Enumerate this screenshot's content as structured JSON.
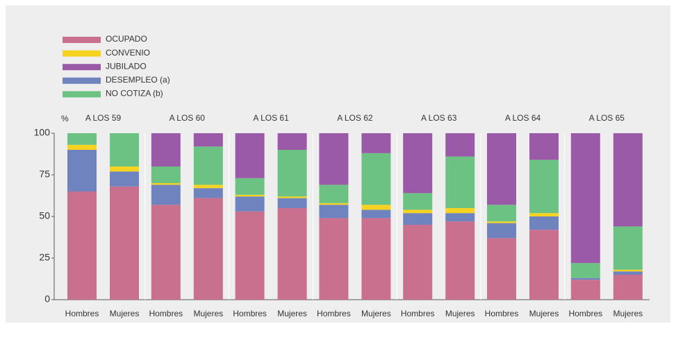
{
  "chart_data": {
    "type": "stacked_bar",
    "y_label": "%",
    "groups": [
      "A LOS 59",
      "A LOS 60",
      "A LOS 61",
      "A LOS 62",
      "A LOS 63",
      "A LOS 64",
      "A LOS 65"
    ],
    "categories": [
      "Hombres",
      "Mujeres",
      "Hombres",
      "Mujeres",
      "Hombres",
      "Mujeres",
      "Hombres",
      "Mujeres",
      "Hombres",
      "Mujeres",
      "Hombres",
      "Mujeres",
      "Hombres",
      "Mujeres"
    ],
    "series": [
      {
        "name": "OCUPADO",
        "color": "#c9708e",
        "values": [
          65,
          68,
          57,
          61,
          53,
          55,
          49,
          49,
          45,
          47,
          37,
          42,
          12,
          15
        ]
      },
      {
        "name": "CONVENIO",
        "color": "#f5d320",
        "values": [
          3,
          3,
          1,
          2,
          1,
          1,
          1,
          3,
          2,
          3,
          1,
          2,
          0,
          1
        ]
      },
      {
        "name": "JUBILADO",
        "color": "#9b5aa8",
        "values": [
          0,
          0,
          20,
          8,
          27,
          10,
          31,
          12,
          36,
          14,
          43,
          16,
          78,
          56
        ]
      },
      {
        "name": "DESEMPLEO (a)",
        "color": "#6f84be",
        "values": [
          25,
          9,
          12,
          6,
          9,
          6,
          8,
          5,
          7,
          5,
          9,
          8,
          1,
          2
        ]
      },
      {
        "name": "NO COTIZA (b)",
        "color": "#6cc283",
        "values": [
          7,
          20,
          10,
          23,
          10,
          28,
          11,
          31,
          10,
          31,
          10,
          32,
          9,
          26
        ]
      }
    ],
    "ylim": [
      0,
      100
    ],
    "yticks": [
      0,
      25,
      50,
      75,
      100
    ],
    "grid": false
  }
}
